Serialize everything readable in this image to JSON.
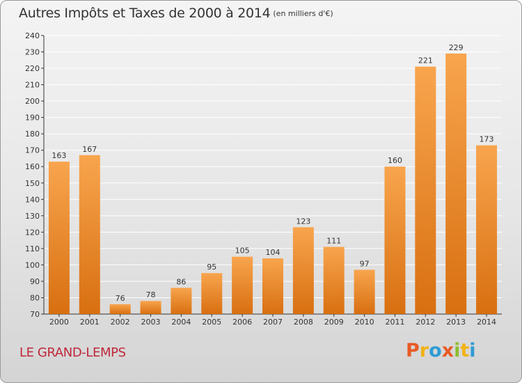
{
  "header": {
    "title": "Autres Impôts et Taxes de 2000 à 2014",
    "unit": "(en milliers d'€)"
  },
  "footer": {
    "location": "LE GRAND-LEMPS",
    "brand": [
      "P",
      "r",
      "o",
      "x",
      "i",
      "t",
      "i"
    ]
  },
  "colors": {
    "bar_top": "#f8a54e",
    "bar_bottom": "#d86f10",
    "grid": "#ffffff",
    "axis": "#333333",
    "location": "#c0273a"
  },
  "chart_data": {
    "type": "bar",
    "title": "Autres Impôts et Taxes de 2000 à 2014",
    "subtitle": "(en milliers d'€)",
    "xlabel": "",
    "ylabel": "",
    "categories": [
      "2000",
      "2001",
      "2002",
      "2003",
      "2004",
      "2005",
      "2006",
      "2007",
      "2008",
      "2009",
      "2010",
      "2011",
      "2012",
      "2013",
      "2014"
    ],
    "values": [
      163,
      167,
      76,
      78,
      86,
      95,
      105,
      104,
      123,
      111,
      97,
      160,
      221,
      229,
      173
    ],
    "ylim": [
      70,
      240
    ],
    "yticks": [
      70,
      80,
      90,
      100,
      110,
      120,
      130,
      140,
      150,
      160,
      170,
      180,
      190,
      200,
      210,
      220,
      230,
      240
    ],
    "grid": true,
    "legend": "none"
  }
}
